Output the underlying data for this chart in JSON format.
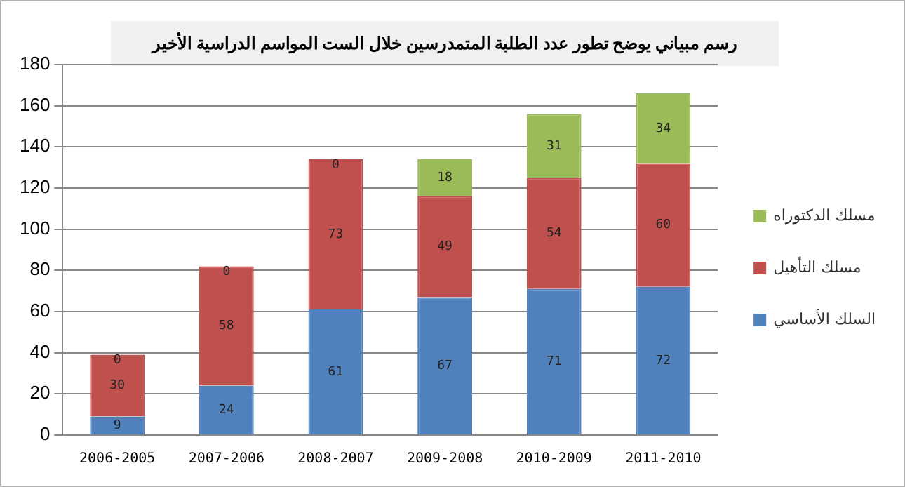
{
  "chart_data": {
    "type": "bar",
    "stacked": true,
    "title": "رسم مبياني يوضح تطور عدد الطلبة المتمدرسين خلال الست المواسم الدراسية الأخير",
    "categories": [
      "2006-2005",
      "2007-2006",
      "2008-2007",
      "2009-2008",
      "2010-2009",
      "2011-2010"
    ],
    "series": [
      {
        "name": "السلك الأساسي",
        "color": "#4f81bd",
        "values": [
          9,
          24,
          61,
          67,
          71,
          72
        ]
      },
      {
        "name": "مسلك التأهيل",
        "color": "#c0504d",
        "values": [
          30,
          58,
          73,
          49,
          54,
          60
        ]
      },
      {
        "name": "مسلك الدكتوراه",
        "color": "#9bbb59",
        "values": [
          0,
          0,
          0,
          18,
          31,
          34
        ]
      }
    ],
    "ylim": [
      0,
      180
    ],
    "yticks": [
      0,
      20,
      40,
      60,
      80,
      100,
      120,
      140,
      160,
      180
    ],
    "grid": "y",
    "legend": "right",
    "data_labels": true
  }
}
